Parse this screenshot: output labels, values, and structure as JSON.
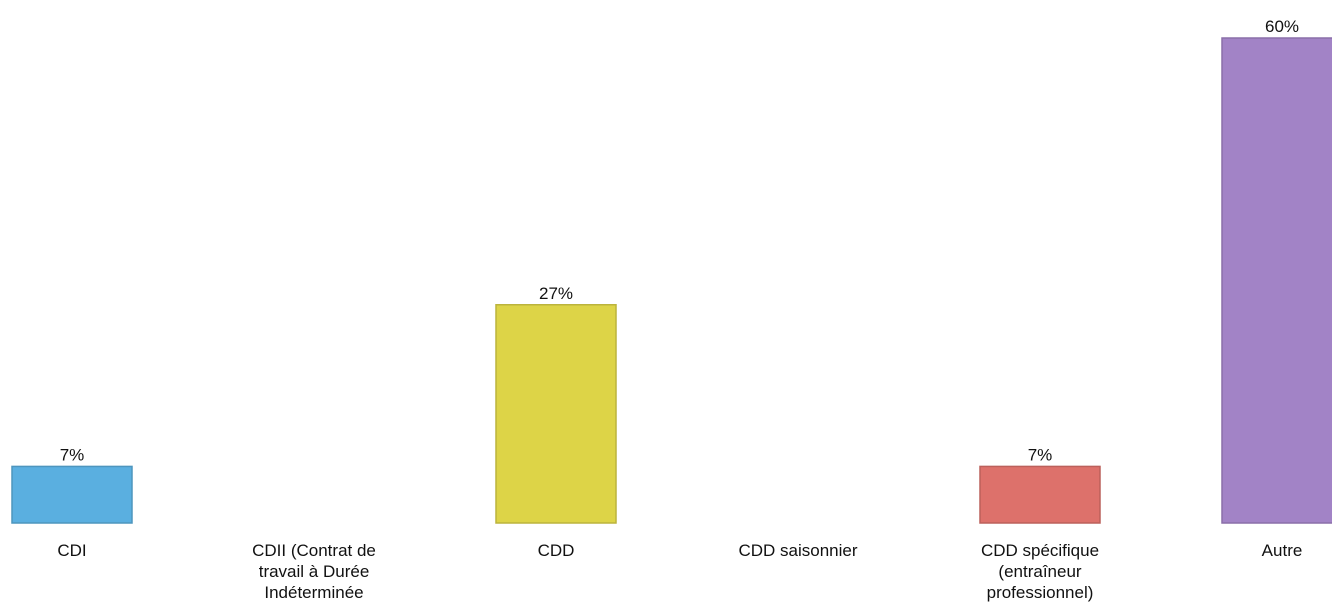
{
  "chart_data": {
    "type": "bar",
    "categories": [
      "CDI",
      "CDII (Contrat de travail à Durée Indéterminée",
      "CDD",
      "CDD saisonnier",
      "CDD spécifique (entraîneur professionnel)",
      "Autre"
    ],
    "values": [
      7,
      0,
      27,
      0,
      7,
      60
    ],
    "value_labels": [
      "7%",
      null,
      "27%",
      null,
      "7%",
      "60%"
    ],
    "colors": [
      "#5aafe0",
      null,
      "#ddd447",
      null,
      "#dd716b",
      "#a283c6"
    ]
  }
}
